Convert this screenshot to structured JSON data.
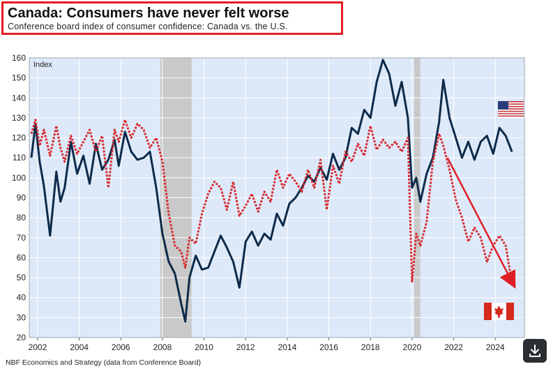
{
  "header": {
    "title": "Canada: Consumers have never felt worse",
    "subtitle": "Conference board index of consumer confidence: Canada vs. the U.S."
  },
  "footer": {
    "source": "NBF Economics and Strategy (data from Conference Board)",
    "download_icon": "download-icon"
  },
  "colors": {
    "us_line": "#0d2a4a",
    "canada_line": "#d8292f",
    "plot_bg": "#dde9f8",
    "recession_band": "#c9c9c9",
    "title_border": "#e01e24",
    "arrow": "#e01e24"
  },
  "chart_data": {
    "type": "line",
    "ylabel": "Index",
    "ylim": [
      20,
      160
    ],
    "xlim": [
      2001.6,
      2025.4
    ],
    "y_ticks": [
      20,
      30,
      40,
      50,
      60,
      70,
      80,
      90,
      100,
      110,
      120,
      130,
      140,
      150,
      160
    ],
    "x_ticks": [
      2002,
      2004,
      2006,
      2008,
      2010,
      2012,
      2014,
      2016,
      2018,
      2020,
      2022,
      2024
    ],
    "grid": true,
    "recession_bands": [
      [
        2007.9,
        2009.4
      ],
      [
        2020.1,
        2020.4
      ]
    ],
    "legend": "flags: United States flag top-right, Canada flag bottom-right",
    "series": [
      {
        "name": "",
        "flag": "us-flag-icon",
        "style": "solid",
        "x": [
          2001.7,
          2001.9,
          2002.1,
          2002.3,
          2002.6,
          2002.9,
          2003.1,
          2003.3,
          2003.6,
          2003.9,
          2004.2,
          2004.5,
          2004.8,
          2005.1,
          2005.4,
          2005.7,
          2005.9,
          2006.2,
          2006.5,
          2006.8,
          2007.1,
          2007.4,
          2007.7,
          2008.0,
          2008.3,
          2008.6,
          2008.9,
          2009.1,
          2009.3,
          2009.6,
          2009.9,
          2010.2,
          2010.5,
          2010.8,
          2011.1,
          2011.4,
          2011.7,
          2012.0,
          2012.3,
          2012.6,
          2012.9,
          2013.2,
          2013.5,
          2013.8,
          2014.1,
          2014.4,
          2014.7,
          2015.0,
          2015.3,
          2015.6,
          2015.9,
          2016.2,
          2016.5,
          2016.8,
          2017.1,
          2017.4,
          2017.7,
          2018.0,
          2018.3,
          2018.6,
          2018.9,
          2019.2,
          2019.5,
          2019.8,
          2020.0,
          2020.2,
          2020.4,
          2020.7,
          2021.0,
          2021.3,
          2021.5,
          2021.8,
          2022.1,
          2022.4,
          2022.7,
          2023.0,
          2023.3,
          2023.6,
          2023.9,
          2024.2,
          2024.5,
          2024.8
        ],
        "values": [
          110,
          127,
          108,
          96,
          71,
          103,
          88,
          95,
          118,
          102,
          111,
          97,
          117,
          104,
          109,
          119,
          106,
          123,
          113,
          109,
          110,
          113,
          95,
          72,
          58,
          52,
          37,
          28,
          50,
          61,
          54,
          55,
          63,
          71,
          65,
          58,
          45,
          68,
          73,
          66,
          72,
          69,
          82,
          76,
          87,
          90,
          95,
          101,
          98,
          105,
          99,
          112,
          104,
          110,
          125,
          122,
          134,
          130,
          148,
          159,
          152,
          136,
          148,
          130,
          95,
          100,
          88,
          102,
          110,
          128,
          149,
          130,
          120,
          110,
          118,
          109,
          118,
          121,
          112,
          125,
          121,
          113
        ]
      },
      {
        "name": "",
        "flag": "canada-flag-icon",
        "style": "dotted",
        "x": [
          2001.7,
          2001.9,
          2002.1,
          2002.3,
          2002.6,
          2002.9,
          2003.1,
          2003.3,
          2003.6,
          2003.9,
          2004.2,
          2004.5,
          2004.8,
          2005.1,
          2005.4,
          2005.7,
          2005.9,
          2006.2,
          2006.5,
          2006.8,
          2007.1,
          2007.4,
          2007.7,
          2008.0,
          2008.3,
          2008.6,
          2008.9,
          2009.1,
          2009.3,
          2009.6,
          2009.9,
          2010.2,
          2010.5,
          2010.8,
          2011.1,
          2011.4,
          2011.7,
          2012.0,
          2012.3,
          2012.6,
          2012.9,
          2013.2,
          2013.5,
          2013.8,
          2014.1,
          2014.4,
          2014.7,
          2015.0,
          2015.3,
          2015.6,
          2015.9,
          2016.2,
          2016.5,
          2016.8,
          2017.1,
          2017.4,
          2017.7,
          2018.0,
          2018.3,
          2018.6,
          2018.9,
          2019.2,
          2019.5,
          2019.8,
          2020.0,
          2020.2,
          2020.4,
          2020.7,
          2021.0,
          2021.3,
          2021.5,
          2021.8,
          2022.1,
          2022.4,
          2022.7,
          2023.0,
          2023.3,
          2023.6,
          2023.9,
          2024.2,
          2024.5,
          2024.8
        ],
        "values": [
          122,
          129,
          116,
          124,
          111,
          126,
          115,
          108,
          121,
          112,
          118,
          124,
          113,
          121,
          95,
          124,
          118,
          129,
          120,
          127,
          124,
          115,
          120,
          108,
          82,
          66,
          63,
          55,
          70,
          67,
          82,
          92,
          98,
          95,
          84,
          98,
          81,
          86,
          92,
          83,
          93,
          88,
          104,
          95,
          102,
          98,
          93,
          104,
          95,
          109,
          84,
          106,
          97,
          113,
          108,
          117,
          111,
          126,
          114,
          119,
          115,
          118,
          113,
          120,
          48,
          72,
          66,
          78,
          108,
          122,
          116,
          104,
          89,
          80,
          68,
          75,
          70,
          58,
          66,
          71,
          66,
          47
        ]
      }
    ],
    "annotations": [
      {
        "type": "arrow",
        "from": [
          2021.7,
          110
        ],
        "to": [
          2024.9,
          46
        ],
        "color": "#e01e24"
      }
    ]
  }
}
